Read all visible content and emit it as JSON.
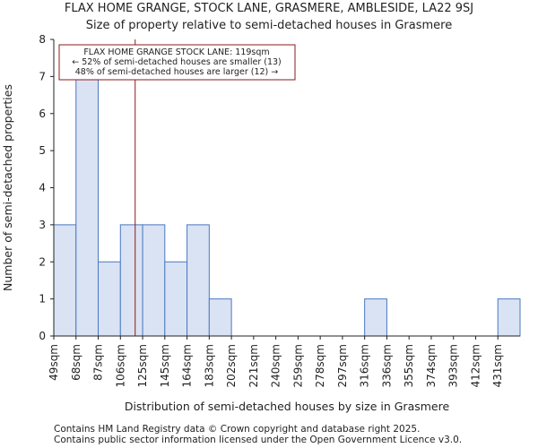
{
  "header": {
    "title_line1": "FLAX HOME GRANGE, STOCK LANE, GRASMERE, AMBLESIDE, LA22 9SJ",
    "title_line2": "Size of property relative to semi-detached houses in Grasmere"
  },
  "footer": {
    "line1": "Contains HM Land Registry data © Crown copyright and database right 2025.",
    "line2": "Contains public sector information licensed under the Open Government Licence v3.0."
  },
  "colors": {
    "bar_fill": "#dae3f3",
    "bar_edge": "#4a78c2",
    "marker": "#8b1a1a"
  },
  "chart_data": {
    "type": "bar",
    "title": "Size of property relative to semi-detached houses in Grasmere",
    "xlabel": "Distribution of semi-detached houses by size in Grasmere",
    "ylabel": "Number of semi-detached properties",
    "categories": [
      "49sqm",
      "68sqm",
      "87sqm",
      "106sqm",
      "125sqm",
      "145sqm",
      "164sqm",
      "183sqm",
      "202sqm",
      "221sqm",
      "240sqm",
      "259sqm",
      "278sqm",
      "297sqm",
      "316sqm",
      "336sqm",
      "355sqm",
      "374sqm",
      "393sqm",
      "412sqm",
      "431sqm"
    ],
    "values": [
      3,
      7,
      2,
      3,
      3,
      2,
      3,
      1,
      0,
      0,
      0,
      0,
      0,
      0,
      1,
      0,
      0,
      0,
      0,
      0,
      1
    ],
    "ylim": [
      0,
      8
    ],
    "yticks": [
      0,
      1,
      2,
      3,
      4,
      5,
      6,
      7,
      8
    ],
    "marker_value": 119,
    "annotation": {
      "line1": "FLAX HOME GRANGE STOCK LANE: 119sqm",
      "line2": "← 52% of semi-detached houses are smaller (13)",
      "line3": "48% of semi-detached houses are larger (12) →"
    }
  }
}
